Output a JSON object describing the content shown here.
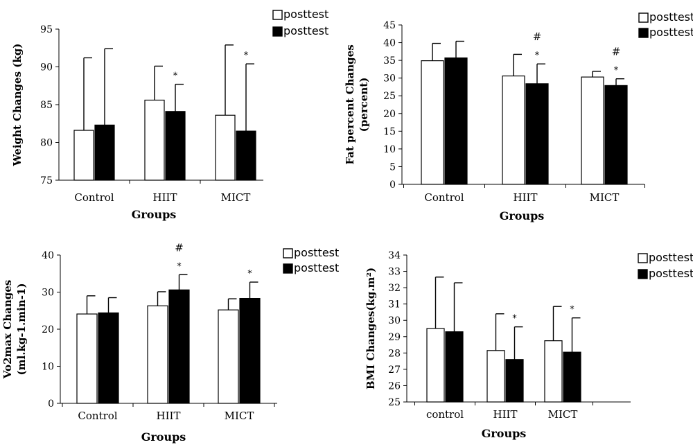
{
  "colors": {
    "open_bar": "#ffffff",
    "filled_bar": "#000000",
    "axis": "#000000"
  },
  "chart_data": [
    {
      "type": "bar",
      "ylabel": "Weight Changes (kg)",
      "xlabel": "Groups",
      "categories": [
        "Control",
        "HIIT",
        "MICT"
      ],
      "ylim": [
        75,
        95
      ],
      "yticks": [
        75,
        80,
        85,
        90,
        95
      ],
      "legend": [
        "posttest",
        "posttest"
      ],
      "series": [
        {
          "name": "posttest",
          "fill": "open",
          "values": [
            81.6,
            85.6,
            83.6
          ],
          "errors": [
            9.6,
            4.5,
            9.3
          ]
        },
        {
          "name": "posttest",
          "fill": "filled",
          "values": [
            82.3,
            84.1,
            81.5
          ],
          "errors": [
            10.1,
            3.6,
            8.9
          ]
        }
      ],
      "annotations": [
        {
          "category": "HIIT",
          "series": 1,
          "rows": [
            "*"
          ]
        },
        {
          "category": "MICT",
          "series": 1,
          "rows": [
            "*"
          ]
        }
      ]
    },
    {
      "type": "bar",
      "ylabel": "Fat percent Changes (percent)",
      "xlabel": "Groups",
      "categories": [
        "Control",
        "HIIT",
        "MICT"
      ],
      "ylim": [
        0,
        45
      ],
      "yticks": [
        0,
        5,
        10,
        15,
        20,
        25,
        30,
        35,
        40,
        45
      ],
      "legend": [
        "posttest",
        "posttest"
      ],
      "series": [
        {
          "name": "posttest",
          "fill": "open",
          "values": [
            34.9,
            30.6,
            30.3
          ],
          "errors": [
            4.9,
            6.1,
            1.6
          ]
        },
        {
          "name": "posttest",
          "fill": "filled",
          "values": [
            35.7,
            28.4,
            27.9
          ],
          "errors": [
            4.7,
            5.6,
            1.9
          ]
        }
      ],
      "annotations": [
        {
          "category": "HIIT",
          "series": 1,
          "rows": [
            "#",
            "*"
          ]
        },
        {
          "category": "MICT",
          "series": 1,
          "rows": [
            "#",
            "*"
          ]
        }
      ]
    },
    {
      "type": "bar",
      "ylabel": "Vo2max Changes (ml.kg-1.min-1)",
      "xlabel": "Groups",
      "categories": [
        "Control",
        "HIIT",
        "MICT"
      ],
      "ylim": [
        0,
        40
      ],
      "yticks": [
        0,
        10,
        20,
        30,
        40
      ],
      "legend": [
        "posttest",
        "posttest"
      ],
      "series": [
        {
          "name": "posttest",
          "fill": "open",
          "values": [
            24.1,
            26.3,
            25.2
          ],
          "errors": [
            4.9,
            3.8,
            3.0
          ]
        },
        {
          "name": "posttest",
          "fill": "filled",
          "values": [
            24.4,
            30.6,
            28.3
          ],
          "errors": [
            4.1,
            4.1,
            4.4
          ]
        }
      ],
      "annotations": [
        {
          "category": "HIIT",
          "series": 1,
          "rows": [
            "#",
            "*"
          ]
        },
        {
          "category": "MICT",
          "series": 1,
          "rows": [
            "*"
          ]
        }
      ]
    },
    {
      "type": "bar",
      "ylabel": "BMI Changes(kg.m²)",
      "xlabel": "Groups",
      "categories": [
        "control",
        "HIIT",
        "MICT"
      ],
      "ylim": [
        25,
        34
      ],
      "yticks": [
        25,
        26,
        27,
        28,
        29,
        30,
        31,
        32,
        33,
        34
      ],
      "legend": [
        "posttest",
        "posttest"
      ],
      "series": [
        {
          "name": "posttest",
          "fill": "open",
          "values": [
            29.5,
            28.15,
            28.75
          ],
          "errors": [
            3.15,
            2.25,
            2.1
          ]
        },
        {
          "name": "posttest",
          "fill": "filled",
          "values": [
            29.3,
            27.6,
            28.05
          ],
          "errors": [
            3.0,
            2.0,
            2.1
          ]
        }
      ],
      "annotations": [
        {
          "category": "HIIT",
          "series": 1,
          "rows": [
            "*"
          ]
        },
        {
          "category": "MICT",
          "series": 1,
          "rows": [
            "*"
          ]
        }
      ]
    }
  ]
}
